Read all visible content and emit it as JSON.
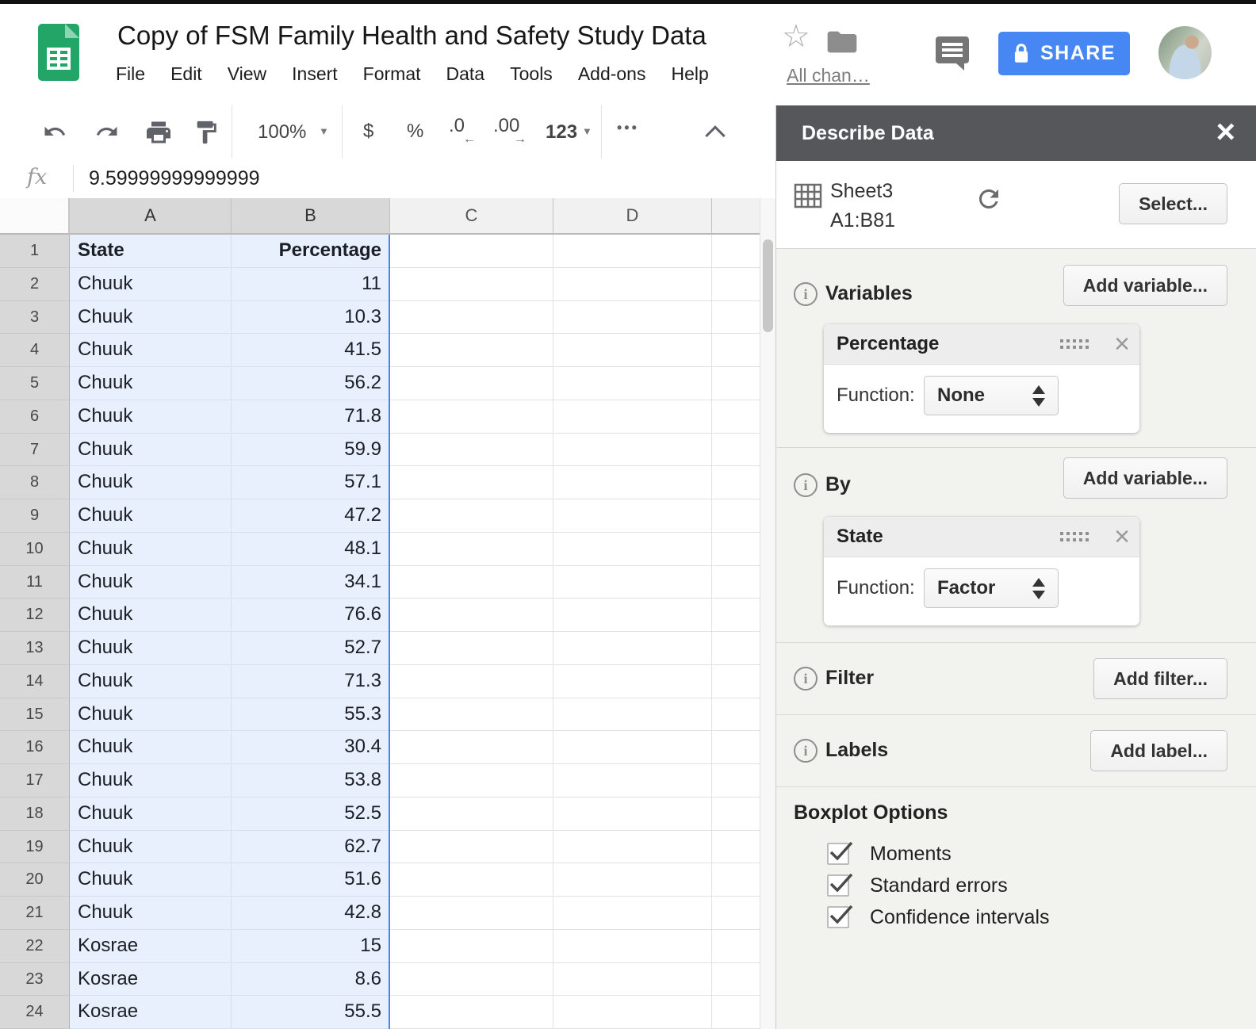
{
  "chrome": {
    "title": "Copy of FSM Family Health and Safety Study Data",
    "menus": [
      "File",
      "Edit",
      "View",
      "Insert",
      "Format",
      "Data",
      "Tools",
      "Add-ons",
      "Help"
    ],
    "all_changes_label": "All chan…",
    "share_label": "SHARE"
  },
  "toolbar": {
    "zoom_value": "100%",
    "currency_label": "$",
    "percent_label": "%",
    "decrease_decimals_label": ".0",
    "increase_decimals_label": ".00",
    "more_formats_label": "123",
    "more_label": "•••"
  },
  "formula_bar": {
    "fx_label": "fx",
    "value": "9.59999999999999"
  },
  "sheet": {
    "column_letters": [
      "A",
      "B",
      "C",
      "D"
    ],
    "header_cells": [
      "State",
      "Percentage"
    ],
    "rows": [
      [
        "Chuuk",
        "11"
      ],
      [
        "Chuuk",
        "10.3"
      ],
      [
        "Chuuk",
        "41.5"
      ],
      [
        "Chuuk",
        "56.2"
      ],
      [
        "Chuuk",
        "71.8"
      ],
      [
        "Chuuk",
        "59.9"
      ],
      [
        "Chuuk",
        "57.1"
      ],
      [
        "Chuuk",
        "47.2"
      ],
      [
        "Chuuk",
        "48.1"
      ],
      [
        "Chuuk",
        "34.1"
      ],
      [
        "Chuuk",
        "76.6"
      ],
      [
        "Chuuk",
        "52.7"
      ],
      [
        "Chuuk",
        "71.3"
      ],
      [
        "Chuuk",
        "55.3"
      ],
      [
        "Chuuk",
        "30.4"
      ],
      [
        "Chuuk",
        "53.8"
      ],
      [
        "Chuuk",
        "52.5"
      ],
      [
        "Chuuk",
        "62.7"
      ],
      [
        "Chuuk",
        "51.6"
      ],
      [
        "Chuuk",
        "42.8"
      ],
      [
        "Kosrae",
        "15"
      ],
      [
        "Kosrae",
        "8.6"
      ],
      [
        "Kosrae",
        "55.5"
      ]
    ]
  },
  "panel": {
    "title": "Describe Data",
    "source": {
      "sheet_name": "Sheet3",
      "range": "A1:B81",
      "select_label": "Select..."
    },
    "variables": {
      "heading": "Variables",
      "add_label": "Add variable...",
      "card": {
        "title": "Percentage",
        "function_label": "Function:",
        "function_value": "None"
      }
    },
    "by": {
      "heading": "By",
      "add_label": "Add variable...",
      "card": {
        "title": "State",
        "function_label": "Function:",
        "function_value": "Factor"
      }
    },
    "filter": {
      "heading": "Filter",
      "add_label": "Add filter..."
    },
    "labels": {
      "heading": "Labels",
      "add_label": "Add label..."
    },
    "boxplot": {
      "heading": "Boxplot Options",
      "options": [
        {
          "label": "Moments",
          "checked": true
        },
        {
          "label": "Standard errors",
          "checked": true
        },
        {
          "label": "Confidence intervals",
          "checked": true
        }
      ]
    }
  },
  "colors": {
    "accent_blue": "#4285f4",
    "selection_fill": "#e8f0fd",
    "selected_header_bg": "#d8d8d8",
    "panel_header_bg": "#56575a",
    "panel_body_bg": "#f2f2ee",
    "logo_green": "#23a567"
  }
}
